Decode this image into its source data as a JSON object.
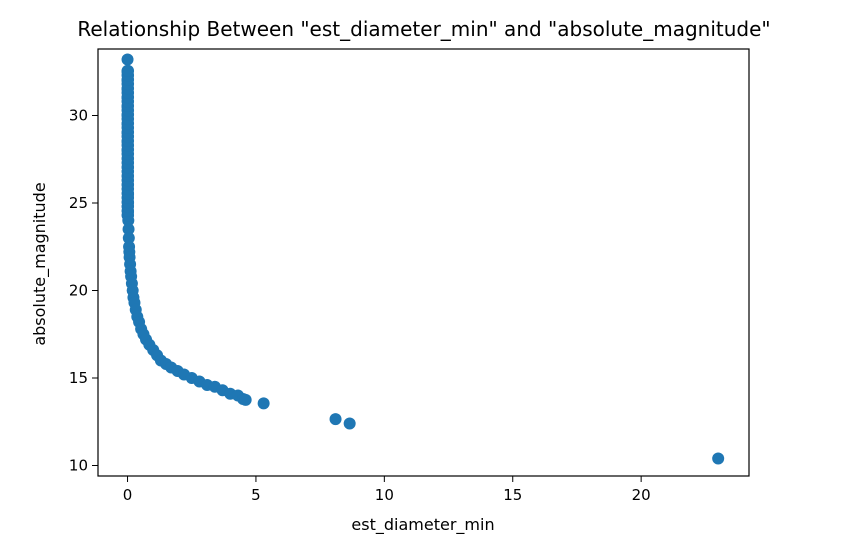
{
  "chart_data": {
    "type": "scatter",
    "title": "Relationship Between \"est_diameter_min\" and \"absolute_magnitude\"",
    "xlabel": "est_diameter_min",
    "ylabel": "absolute_magnitude",
    "xlim": [
      -1.15,
      24.2
    ],
    "ylim": [
      9.4,
      33.8
    ],
    "xticks": [
      0,
      5,
      10,
      15,
      20
    ],
    "yticks": [
      10,
      15,
      20,
      25,
      30
    ],
    "grid": false,
    "color": "#1f77b4",
    "series": [
      {
        "x": [
          0.0,
          0.0,
          0.0,
          0.0,
          0.0,
          0.0,
          0.0,
          0.0,
          0.0,
          0.0,
          0.0,
          0.01,
          0.01,
          0.01,
          0.01,
          0.02,
          0.02,
          0.02,
          0.03,
          0.04,
          0.05,
          0.06,
          0.07,
          0.08,
          0.1,
          0.12,
          0.14,
          0.17,
          0.2,
          0.23,
          0.27,
          0.32,
          0.38,
          0.45,
          0.53,
          0.62,
          0.72,
          0.85,
          1.0,
          1.15,
          1.3,
          1.5,
          1.7,
          1.95,
          2.2,
          2.5,
          2.8,
          3.1,
          3.4,
          3.7,
          4.0,
          4.3,
          4.5,
          4.6,
          5.3,
          8.1,
          8.65,
          23.0
        ],
        "y": [
          33.2,
          32.5,
          32.0,
          31.5,
          31.0,
          30.5,
          30.0,
          29.5,
          29.0,
          28.5,
          28.0,
          27.5,
          27.0,
          26.5,
          26.0,
          25.5,
          25.0,
          24.5,
          24.0,
          23.5,
          23.0,
          22.5,
          22.2,
          21.9,
          21.5,
          21.1,
          20.8,
          20.4,
          20.0,
          19.6,
          19.3,
          18.9,
          18.5,
          18.2,
          17.8,
          17.5,
          17.2,
          16.9,
          16.6,
          16.3,
          16.0,
          15.8,
          15.6,
          15.4,
          15.2,
          15.0,
          14.8,
          14.6,
          14.5,
          14.3,
          14.1,
          14.0,
          13.8,
          13.75,
          13.55,
          12.65,
          12.4,
          10.4
        ]
      }
    ]
  }
}
